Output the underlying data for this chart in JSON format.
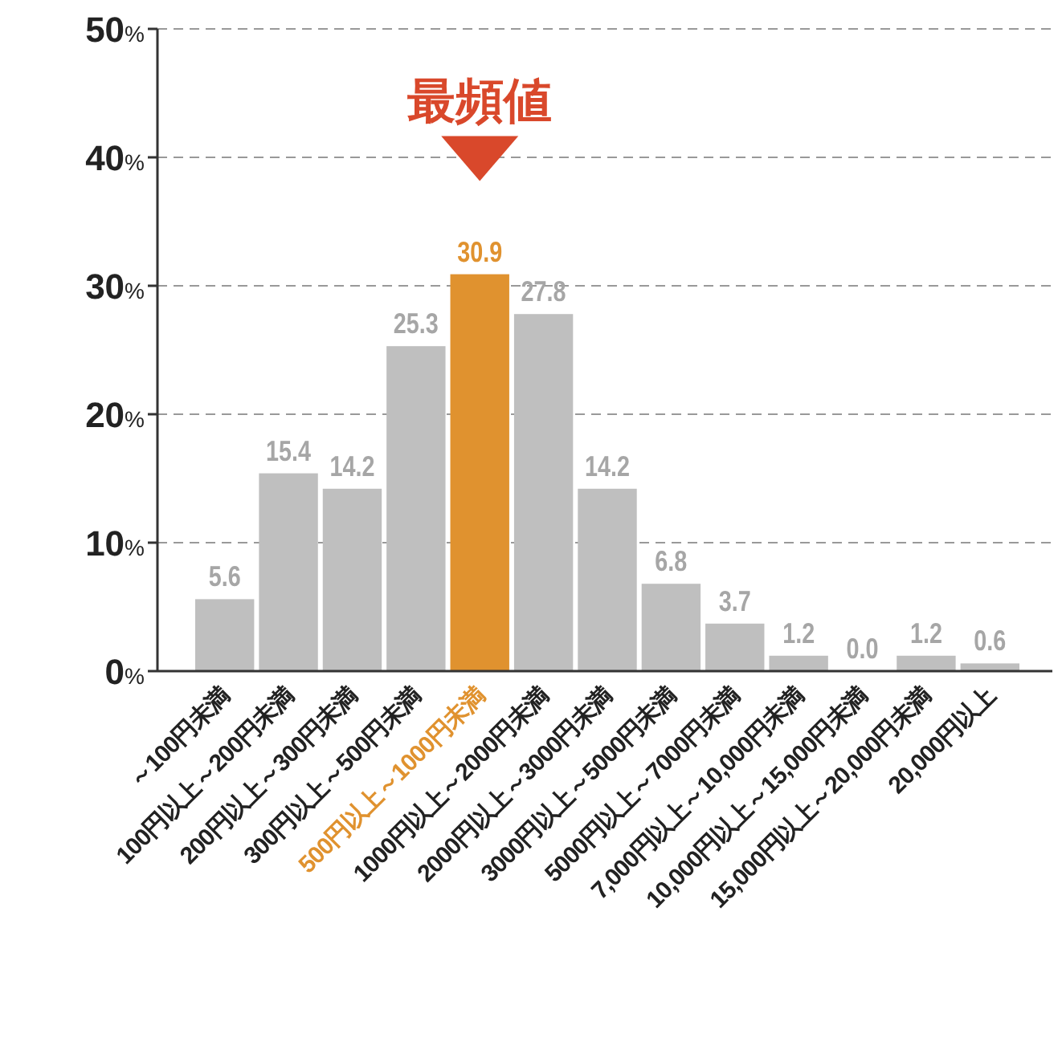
{
  "chart_data": {
    "type": "bar",
    "categories": [
      "～100円未満",
      "100円以上～200円未満",
      "200円以上～300円未満",
      "300円以上～500円未満",
      "500円以上～1000円未満",
      "1000円以上～2000円未満",
      "2000円以上～3000円未満",
      "3000円以上～5000円未満",
      "5000円以上～7000円未満",
      "7,000円以上～10,000円未満",
      "10,000円以上～15,000円未満",
      "15,000円以上～20,000円未満",
      "20,000円以上"
    ],
    "values": [
      5.6,
      15.4,
      14.2,
      25.3,
      30.9,
      27.8,
      14.2,
      6.8,
      3.7,
      1.2,
      0.0,
      1.2,
      0.6
    ],
    "value_labels": [
      "5.6",
      "15.4",
      "14.2",
      "25.3",
      "30.9",
      "27.8",
      "14.2",
      "6.8",
      "3.7",
      "1.2",
      "0.0",
      "1.2",
      "0.6"
    ],
    "color": "#bfbfbf",
    "colors": [
      "#bfbfbf",
      "#bfbfbf",
      "#bfbfbf",
      "#bfbfbf",
      "#e0922f",
      "#bfbfbf",
      "#bfbfbf",
      "#bfbfbf",
      "#bfbfbf",
      "#bfbfbf",
      "#bfbfbf",
      "#bfbfbf",
      "#bfbfbf"
    ],
    "ylim": [
      0,
      50
    ],
    "yticks": [
      {
        "value": 0,
        "label": "0%"
      },
      {
        "value": 10,
        "label": "10%"
      },
      {
        "value": 20,
        "label": "20%"
      },
      {
        "value": 30,
        "label": "30%"
      },
      {
        "value": 40,
        "label": "40%"
      },
      {
        "value": 50,
        "label": "50%"
      }
    ],
    "grid": "y",
    "annotations": [
      "最頻値"
    ]
  }
}
